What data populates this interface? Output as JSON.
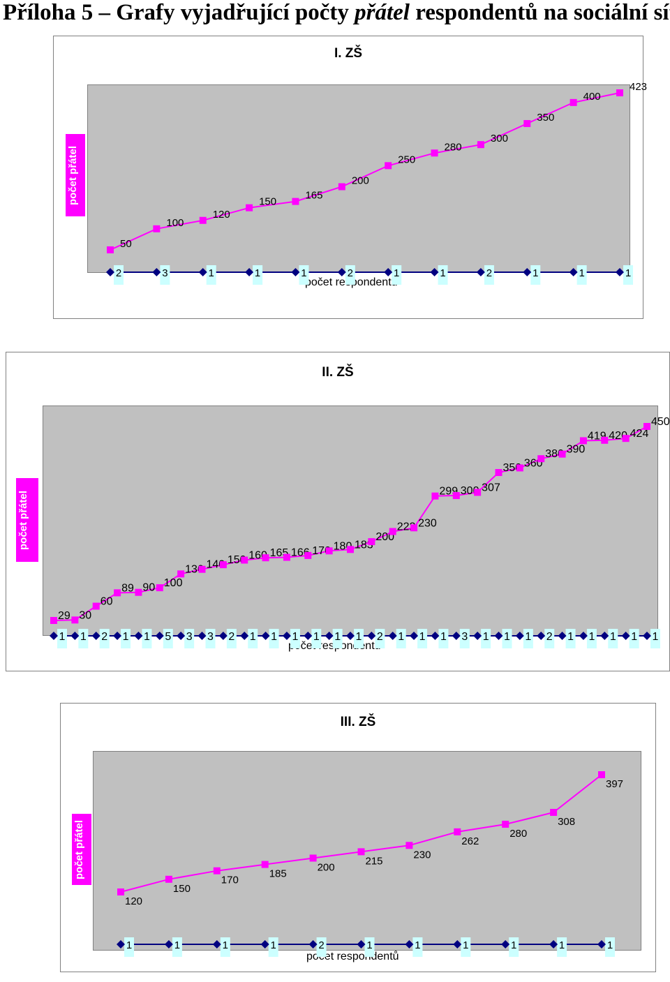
{
  "page": {
    "title_part1": "Příloha 5 – Grafy vyjadřující počty ",
    "title_italic": "přátel",
    "title_part2": " respondentů na sociální síti"
  },
  "colors": {
    "friends": "#ff00ff",
    "respondents": "#000080",
    "plot_bg": "#c0c0c0",
    "respondent_label_bg": "#ccffff"
  },
  "chart_data": [
    {
      "type": "line",
      "title": "I. ZŠ",
      "xlabel": "počet respondentů",
      "ylabel": "počet přátel",
      "grid": false,
      "series": [
        {
          "values": [
            50,
            100,
            120,
            150,
            165,
            200,
            250,
            280,
            300,
            350,
            400,
            423
          ]
        },
        {
          "values": [
            2,
            3,
            1,
            1,
            1,
            2,
            1,
            1,
            2,
            1,
            1,
            1
          ]
        }
      ]
    },
    {
      "type": "line",
      "title": "II. ZŠ",
      "xlabel": "počet respondentů",
      "ylabel": "počet přátel",
      "grid": false,
      "series": [
        {
          "values": [
            29,
            30,
            60,
            89,
            90,
            100,
            130,
            140,
            150,
            160,
            165,
            166,
            170,
            180,
            183,
            200,
            222,
            230,
            299,
            300,
            307,
            350,
            360,
            380,
            390,
            419,
            420,
            424,
            450
          ]
        },
        {
          "values": [
            1,
            1,
            2,
            1,
            1,
            5,
            3,
            3,
            2,
            1,
            1,
            1,
            1,
            1,
            1,
            2,
            1,
            1,
            1,
            3,
            1,
            1,
            1,
            2,
            1,
            1,
            1,
            1,
            1
          ]
        }
      ]
    },
    {
      "type": "line",
      "title": "III. ZŠ",
      "xlabel": "počet respondentů",
      "ylabel": "počet přátel",
      "grid": false,
      "series": [
        {
          "values": [
            120,
            150,
            170,
            185,
            200,
            215,
            230,
            262,
            280,
            308,
            397
          ]
        },
        {
          "values": [
            1,
            1,
            1,
            1,
            2,
            1,
            1,
            1,
            1,
            1,
            1
          ]
        }
      ]
    }
  ]
}
